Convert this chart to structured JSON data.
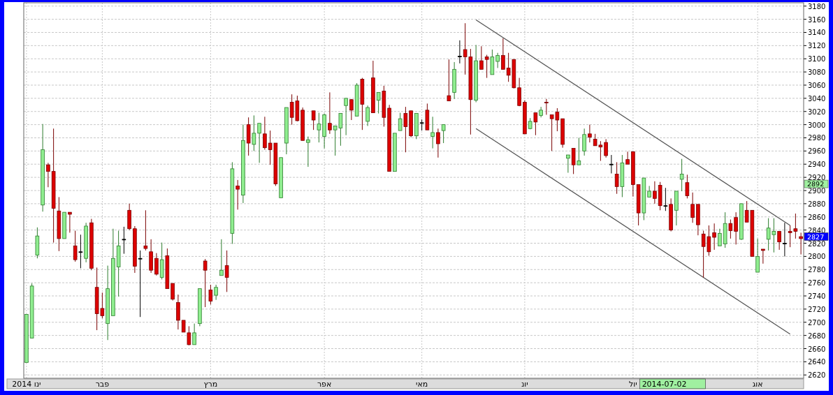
{
  "chart_data": {
    "type": "candlestick",
    "grid": true,
    "ylim": [
      2615,
      3185
    ],
    "yticks": [
      2620,
      2640,
      2660,
      2680,
      2700,
      2720,
      2740,
      2760,
      2780,
      2800,
      2820,
      2840,
      2860,
      2880,
      2900,
      2920,
      2940,
      2960,
      2980,
      3000,
      3020,
      3040,
      3060,
      3080,
      3100,
      3120,
      3140,
      3160,
      3180
    ],
    "categories": [
      "2014 ינו",
      null,
      null,
      null,
      null,
      null,
      null,
      null,
      null,
      null,
      null,
      null,
      null,
      null,
      "פבר",
      null,
      null,
      null,
      null,
      null,
      null,
      null,
      null,
      null,
      null,
      null,
      null,
      null,
      null,
      null,
      null,
      null,
      null,
      null,
      "מרץ",
      null,
      null,
      null,
      null,
      null,
      null,
      null,
      null,
      null,
      null,
      null,
      null,
      null,
      null,
      null,
      null,
      null,
      null,
      null,
      null,
      "אפר",
      null,
      null,
      null,
      null,
      null,
      null,
      null,
      null,
      null,
      null,
      null,
      null,
      null,
      null,
      null,
      null,
      null,
      "מאי",
      null,
      null,
      null,
      null,
      null,
      null,
      null,
      null,
      null,
      null,
      null,
      null,
      null,
      null,
      null,
      null,
      null,
      null,
      "יונ",
      null,
      null,
      null,
      null,
      null,
      null,
      null,
      null,
      null,
      null,
      null,
      null,
      null,
      null,
      null,
      null,
      null,
      null,
      null,
      "יול",
      null,
      null,
      null,
      null,
      null,
      null,
      null,
      null,
      null,
      null,
      null,
      null,
      null,
      null,
      null,
      null,
      null,
      null,
      null,
      null,
      null,
      null,
      "אוג",
      null,
      null,
      null,
      null,
      null,
      null,
      null,
      null
    ],
    "ohlc": [
      [
        2639,
        2712,
        2639,
        2712
      ],
      [
        2676,
        2759,
        2676,
        2755
      ],
      [
        2802,
        2844,
        2797,
        2831
      ],
      [
        2878,
        3001,
        2868,
        2962
      ],
      [
        2939,
        2942,
        2905,
        2929
      ],
      [
        2929,
        2994,
        2821,
        2873
      ],
      [
        2869,
        2890,
        2808,
        2827
      ],
      [
        2827,
        2867,
        2827,
        2867
      ],
      [
        2867,
        2867,
        2836,
        2864
      ],
      [
        2816,
        2839,
        2792,
        2795
      ],
      [
        2807,
        2833,
        2782,
        2807
      ],
      [
        2797,
        2851,
        2791,
        2846
      ],
      [
        2851,
        2857,
        2779,
        2782
      ],
      [
        2753,
        2783,
        2688,
        2713
      ],
      [
        2721,
        2745,
        2706,
        2710
      ],
      [
        2698,
        2786,
        2673,
        2751
      ],
      [
        2710,
        2842,
        2710,
        2797
      ],
      [
        2784,
        2839,
        2739,
        2816
      ],
      [
        2826,
        2845,
        2804,
        2826
      ],
      [
        2870,
        2880,
        2840,
        2842
      ],
      [
        2842,
        2846,
        2775,
        2785
      ],
      [
        2797,
        2809,
        2708,
        2797
      ],
      [
        2816,
        2870,
        2809,
        2812
      ],
      [
        2807,
        2826,
        2775,
        2779
      ],
      [
        2797,
        2805,
        2771,
        2773
      ],
      [
        2768,
        2821,
        2765,
        2795
      ],
      [
        2801,
        2812,
        2751,
        2751
      ],
      [
        2759,
        2759,
        2733,
        2735
      ],
      [
        2730,
        2742,
        2689,
        2703
      ],
      [
        2703,
        2703,
        2685,
        2685
      ],
      [
        2684,
        2694,
        2665,
        2666
      ],
      [
        2666,
        2698,
        2666,
        2684
      ],
      [
        2698,
        2751,
        2694,
        2751
      ],
      [
        2793,
        2796,
        2723,
        2779
      ],
      [
        2749,
        2757,
        2727,
        2732
      ],
      [
        2741,
        2757,
        2734,
        2753
      ],
      [
        2771,
        2826,
        2771,
        2779
      ],
      [
        2786,
        2809,
        2746,
        2768
      ],
      [
        2835,
        2943,
        2819,
        2933
      ],
      [
        2907,
        2916,
        2871,
        2902
      ],
      [
        2893,
        3000,
        2881,
        2976
      ],
      [
        3000,
        3011,
        2953,
        2972
      ],
      [
        2970,
        3014,
        2960,
        2987
      ],
      [
        2987,
        3002,
        2942,
        3002
      ],
      [
        2986,
        3012,
        2962,
        2965
      ],
      [
        2972,
        2991,
        2939,
        2962
      ],
      [
        2972,
        2972,
        2907,
        2910
      ],
      [
        2889,
        2950,
        2889,
        2950
      ],
      [
        2972,
        3026,
        2955,
        3026
      ],
      [
        3034,
        3046,
        3000,
        3011
      ],
      [
        3036,
        3044,
        3005,
        3006
      ],
      [
        3022,
        3026,
        2976,
        2976
      ],
      [
        2973,
        2982,
        2936,
        2977
      ],
      [
        3021,
        3021,
        2992,
        3007
      ],
      [
        2992,
        3018,
        2973,
        3001
      ],
      [
        2982,
        3017,
        2964,
        3015
      ],
      [
        3002,
        3049,
        2986,
        2992
      ],
      [
        2992,
        2998,
        2953,
        2998
      ],
      [
        2995,
        3017,
        2968,
        3017
      ],
      [
        3029,
        3040,
        2984,
        3040
      ],
      [
        3038,
        3039,
        3007,
        3022
      ],
      [
        3013,
        3063,
        3013,
        3060
      ],
      [
        3069,
        3071,
        2992,
        3031
      ],
      [
        3005,
        3029,
        2998,
        3026
      ],
      [
        3071,
        3097,
        3018,
        3018
      ],
      [
        3037,
        3049,
        3017,
        3049
      ],
      [
        3051,
        3059,
        2997,
        3011
      ],
      [
        3025,
        3030,
        2929,
        2929
      ],
      [
        2929,
        2987,
        2929,
        2987
      ],
      [
        2991,
        3018,
        2991,
        3009
      ],
      [
        3017,
        3027,
        2958,
        2997
      ],
      [
        3021,
        3021,
        2981,
        2983
      ],
      [
        2983,
        3017,
        2978,
        3017
      ],
      [
        3003,
        3008,
        2991,
        3003
      ],
      [
        3022,
        3032,
        2992,
        2992
      ],
      [
        2982,
        3012,
        2964,
        2988
      ],
      [
        2988,
        2994,
        2950,
        2971
      ],
      [
        2991,
        3000,
        2972,
        3000
      ],
      [
        3044,
        3099,
        3036,
        3036
      ],
      [
        3049,
        3095,
        3039,
        3084
      ],
      [
        3104,
        3128,
        3093,
        3104
      ],
      [
        3114,
        3154,
        3076,
        3103
      ],
      [
        3103,
        3115,
        2985,
        3038
      ],
      [
        3037,
        3121,
        3034,
        3097
      ],
      [
        3097,
        3119,
        3084,
        3084
      ],
      [
        3103,
        3106,
        3071,
        3099
      ],
      [
        3076,
        3114,
        3076,
        3103
      ],
      [
        3096,
        3109,
        3086,
        3105
      ],
      [
        3105,
        3131,
        3084,
        3084
      ],
      [
        3086,
        3109,
        3065,
        3075
      ],
      [
        3099,
        3099,
        3055,
        3056
      ],
      [
        3056,
        3071,
        3028,
        3029
      ],
      [
        3034,
        3037,
        2986,
        2986
      ],
      [
        2994,
        3010,
        2993,
        3005
      ],
      [
        3018,
        3018,
        2984,
        3004
      ],
      [
        3014,
        3027,
        3011,
        3022
      ],
      [
        3034,
        3039,
        3015,
        3033
      ],
      [
        3015,
        3015,
        2960,
        3009
      ],
      [
        3019,
        3025,
        2990,
        3007
      ],
      [
        3009,
        3009,
        2965,
        2970
      ],
      [
        2949,
        2954,
        2927,
        2954
      ],
      [
        2964,
        2964,
        2925,
        2939
      ],
      [
        2939,
        2980,
        2939,
        2945
      ],
      [
        2960,
        2994,
        2953,
        2985
      ],
      [
        2986,
        3000,
        2973,
        2981
      ],
      [
        2978,
        2986,
        2968,
        2968
      ],
      [
        2969,
        2975,
        2945,
        2966
      ],
      [
        2973,
        2978,
        2950,
        2953
      ],
      [
        2940,
        2954,
        2926,
        2940
      ],
      [
        2925,
        2943,
        2895,
        2906
      ],
      [
        2906,
        2954,
        2890,
        2942
      ],
      [
        2947,
        2959,
        2940,
        2940
      ],
      [
        2959,
        2959,
        2891,
        2909
      ],
      [
        2909,
        2909,
        2847,
        2866
      ],
      [
        2866,
        2919,
        2855,
        2919
      ],
      [
        2890,
        2907,
        2890,
        2899
      ],
      [
        2899,
        2914,
        2880,
        2888
      ],
      [
        2908,
        2913,
        2870,
        2877
      ],
      [
        2877,
        2904,
        2869,
        2877
      ],
      [
        2879,
        2888,
        2838,
        2840
      ],
      [
        2870,
        2899,
        2847,
        2899
      ],
      [
        2917,
        2948,
        2899,
        2925
      ],
      [
        2912,
        2924,
        2888,
        2892
      ],
      [
        2879,
        2897,
        2851,
        2859
      ],
      [
        2879,
        2879,
        2832,
        2848
      ],
      [
        2834,
        2839,
        2768,
        2815
      ],
      [
        2830,
        2847,
        2801,
        2807
      ],
      [
        2836,
        2850,
        2810,
        2829
      ],
      [
        2816,
        2842,
        2816,
        2835
      ],
      [
        2819,
        2867,
        2813,
        2850
      ],
      [
        2850,
        2856,
        2827,
        2839
      ],
      [
        2859,
        2867,
        2818,
        2838
      ],
      [
        2826,
        2880,
        2825,
        2880
      ],
      [
        2870,
        2884,
        2852,
        2852
      ],
      [
        2870,
        2870,
        2800,
        2800
      ],
      [
        2776,
        2827,
        2776,
        2800
      ],
      [
        2811,
        2811,
        2789,
        2809
      ],
      [
        2826,
        2858,
        2809,
        2843
      ],
      [
        2833,
        2858,
        2806,
        2838
      ],
      [
        2838,
        2838,
        2810,
        2822
      ],
      [
        2820,
        2851,
        2800,
        2820
      ],
      [
        2838,
        2847,
        2814,
        2836
      ],
      [
        2842,
        2865,
        2827,
        2838
      ],
      [
        2830,
        2836,
        2803,
        2827
      ]
    ],
    "series": [
      {
        "type": "line",
        "color": "#555555",
        "values": [
          null,
          null,
          null,
          null,
          null,
          null,
          null,
          null,
          null,
          null,
          null,
          null,
          null,
          null,
          null,
          null,
          null,
          null,
          null,
          null,
          null,
          null,
          null,
          null,
          null,
          null,
          null,
          null,
          null,
          null,
          null,
          null,
          null,
          null,
          null,
          null,
          null,
          null,
          null,
          null,
          null,
          null,
          null,
          null,
          null,
          null,
          null,
          null,
          null,
          null,
          null,
          null,
          null,
          null,
          null,
          null,
          null,
          null,
          null,
          null,
          null,
          null,
          null,
          null,
          null,
          null,
          null,
          null,
          null,
          null,
          null,
          null,
          null,
          null,
          null,
          null,
          null,
          null,
          null,
          null,
          null,
          null,
          null,
          3159,
          null,
          null,
          null,
          null,
          null,
          null,
          null,
          null,
          null,
          null,
          null,
          null,
          null,
          null,
          null,
          null,
          null,
          null,
          null,
          null,
          null,
          null,
          null,
          null,
          null,
          null,
          null,
          null,
          null,
          null,
          null,
          null,
          null,
          null,
          null,
          null,
          null,
          null,
          null,
          null,
          null,
          null,
          null,
          null,
          null,
          null,
          null,
          null,
          null,
          null,
          null,
          null,
          null,
          null,
          null,
          null,
          null,
          2847,
          null,
          null
        ]
      },
      {
        "type": "line",
        "color": "#555555",
        "values": [
          null,
          null,
          null,
          null,
          null,
          null,
          null,
          null,
          null,
          null,
          null,
          null,
          null,
          null,
          null,
          null,
          null,
          null,
          null,
          null,
          null,
          null,
          null,
          null,
          null,
          null,
          null,
          null,
          null,
          null,
          null,
          null,
          null,
          null,
          null,
          null,
          null,
          null,
          null,
          null,
          null,
          null,
          null,
          null,
          null,
          null,
          null,
          null,
          null,
          null,
          null,
          null,
          null,
          null,
          null,
          null,
          null,
          null,
          null,
          null,
          null,
          null,
          null,
          null,
          null,
          null,
          null,
          null,
          null,
          null,
          null,
          null,
          null,
          null,
          null,
          null,
          null,
          null,
          null,
          null,
          null,
          null,
          null,
          2994,
          null,
          null,
          null,
          null,
          null,
          null,
          null,
          null,
          null,
          null,
          null,
          null,
          null,
          null,
          null,
          null,
          null,
          null,
          null,
          null,
          null,
          null,
          null,
          null,
          null,
          null,
          null,
          null,
          null,
          null,
          null,
          null,
          null,
          null,
          null,
          null,
          null,
          null,
          null,
          null,
          null,
          null,
          null,
          null,
          null,
          null,
          null,
          null,
          null,
          null,
          null,
          null,
          null,
          null,
          null,
          null,
          null,
          2682,
          null,
          null
        ]
      }
    ],
    "annotations": [
      "2892",
      "2827",
      "2014-07-02"
    ]
  }
}
